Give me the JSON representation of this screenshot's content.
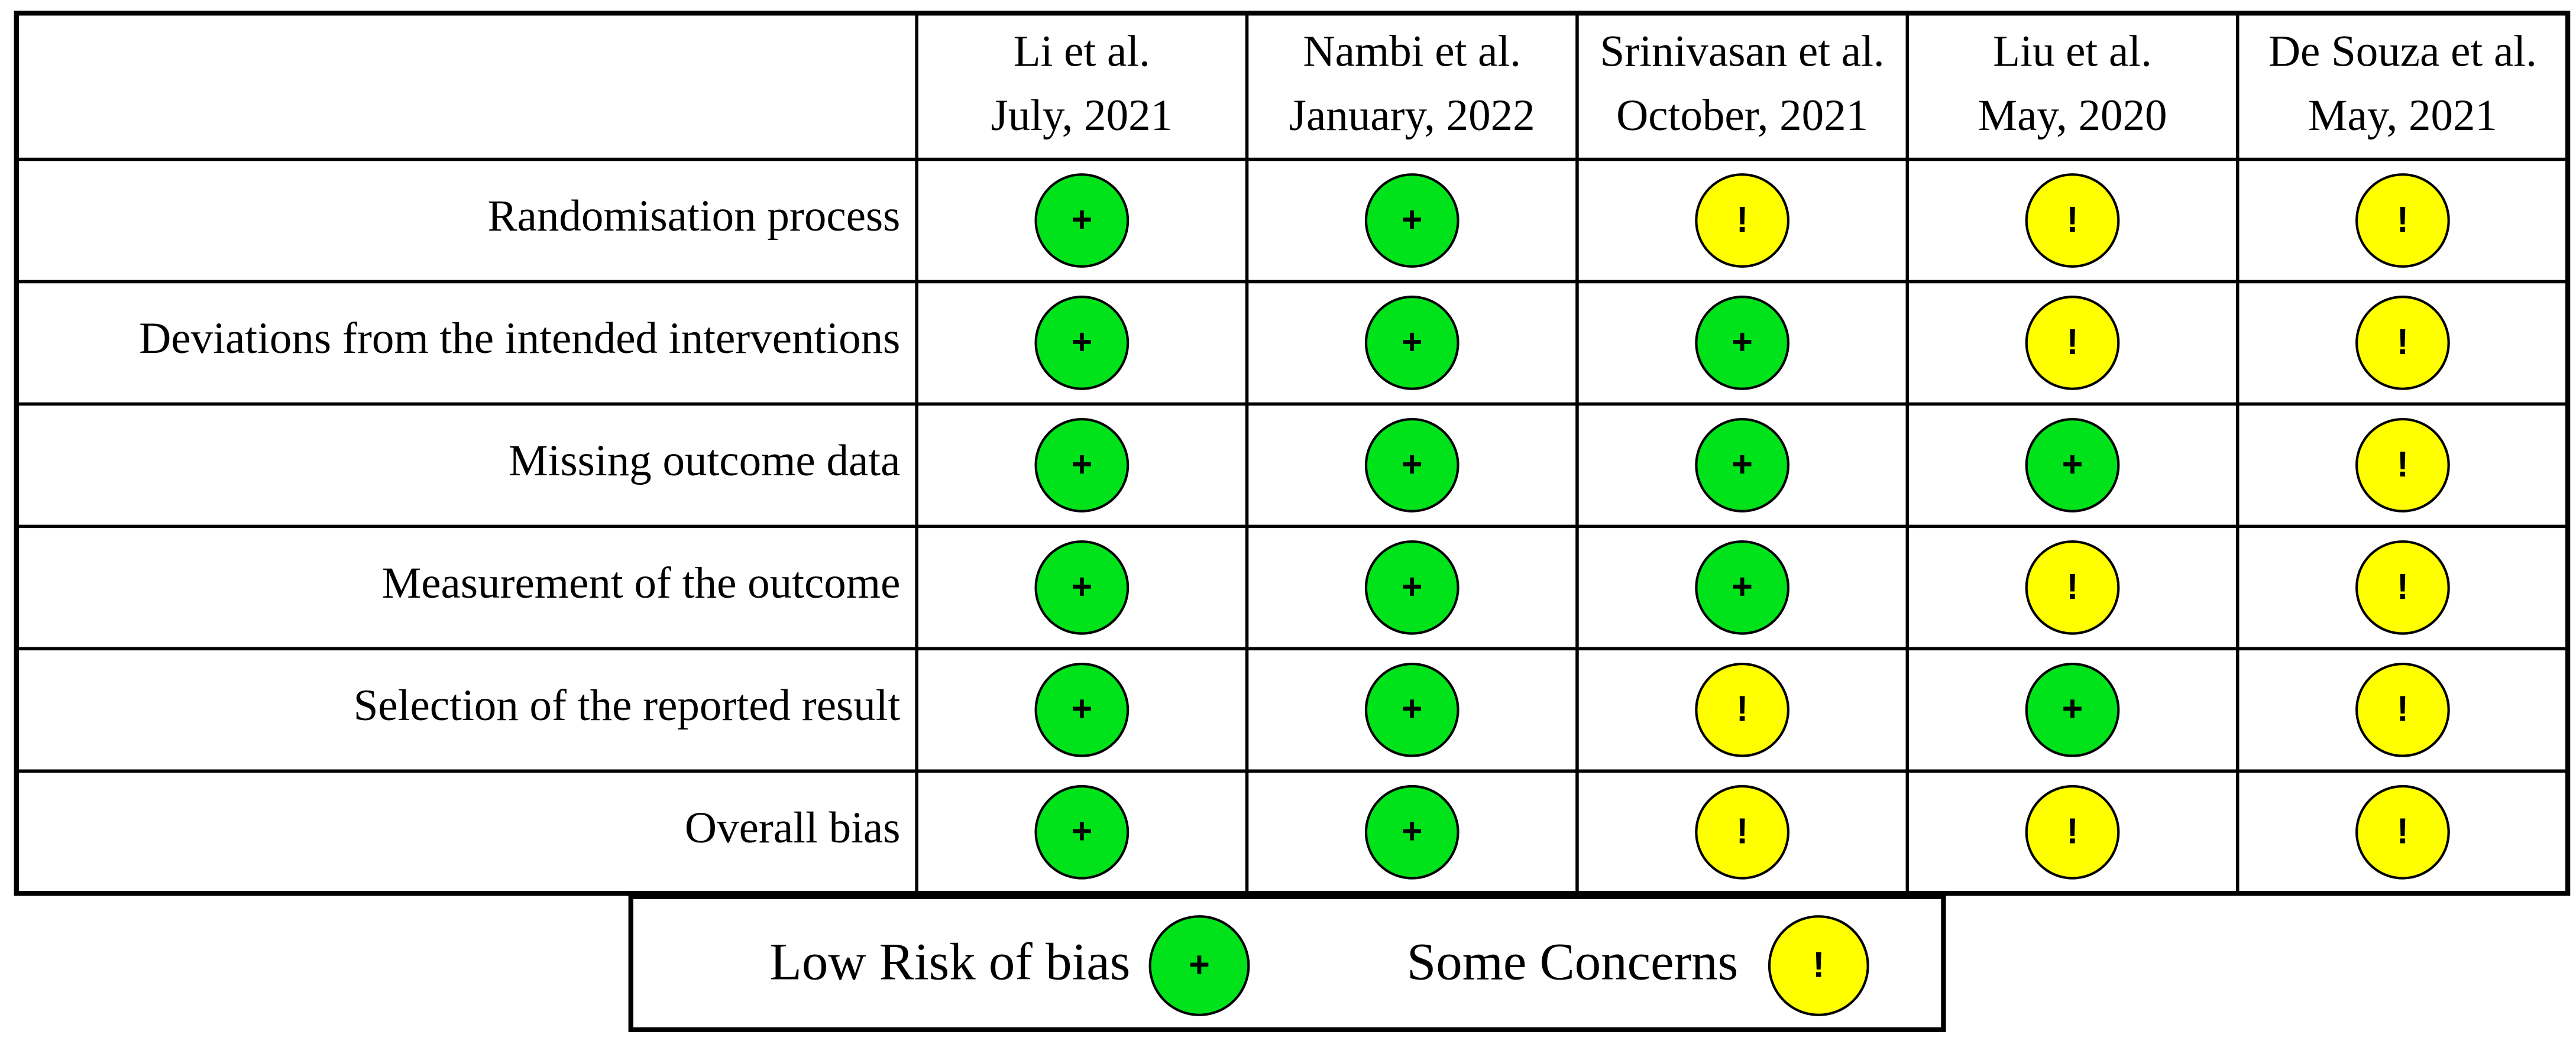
{
  "table": {
    "columns": [
      {
        "study": "Li et al.",
        "date": "July, 2021"
      },
      {
        "study": "Nambi et al.",
        "date": "January, 2022"
      },
      {
        "study": "Srinivasan et al.",
        "date": "October, 2021"
      },
      {
        "study": "Liu et al.",
        "date": "May, 2020"
      },
      {
        "study": "De Souza et al.",
        "date": "May, 2021"
      }
    ],
    "rows": [
      {
        "domain": "Randomisation process",
        "judgments": [
          "+",
          "+",
          "!",
          "!",
          "!"
        ]
      },
      {
        "domain": "Deviations from the intended interventions",
        "judgments": [
          "+",
          "+",
          "+",
          "!",
          "!"
        ]
      },
      {
        "domain": "Missing outcome data",
        "judgments": [
          "+",
          "+",
          "+",
          "+",
          "!"
        ]
      },
      {
        "domain": "Measurement of the outcome",
        "judgments": [
          "+",
          "+",
          "+",
          "!",
          "!"
        ]
      },
      {
        "domain": "Selection of the reported result",
        "judgments": [
          "+",
          "+",
          "!",
          "+",
          "!"
        ]
      },
      {
        "domain": "Overall bias",
        "judgments": [
          "+",
          "+",
          "!",
          "!",
          "!"
        ]
      }
    ]
  },
  "legend": [
    {
      "label": "Low Risk of bias",
      "symbol": "+",
      "color": "#00e31b"
    },
    {
      "label": "Some Concerns",
      "symbol": "!",
      "color": "#ffff00"
    }
  ]
}
